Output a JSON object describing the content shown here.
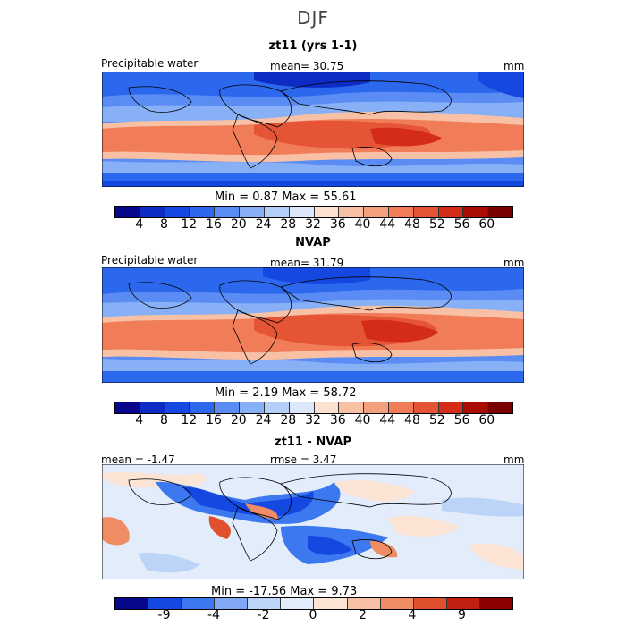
{
  "season": "DJF",
  "panels": [
    {
      "title": "zt11 (yrs 1-1)",
      "left_label": "Precipitable water",
      "center_label": "mean=  30.75",
      "right_label": "mm",
      "stats": "Min =    0.87  Max =   55.61",
      "ticks": [
        "4",
        "8",
        "12",
        "16",
        "20",
        "24",
        "28",
        "32",
        "36",
        "40",
        "44",
        "48",
        "52",
        "56",
        "60"
      ]
    },
    {
      "title": "NVAP",
      "left_label": "Precipitable water",
      "center_label": "mean=  31.79",
      "right_label": "mm",
      "stats": "Min =    2.19  Max =   58.72",
      "ticks": [
        "4",
        "8",
        "12",
        "16",
        "20",
        "24",
        "28",
        "32",
        "36",
        "40",
        "44",
        "48",
        "52",
        "56",
        "60"
      ]
    },
    {
      "title": "zt11 - NVAP",
      "left_label": "mean =  -1.47",
      "center_label": "rmse =    3.47",
      "right_label": "mm",
      "stats": "Min = -17.56  Max =    9.73",
      "ticks": [
        "-9",
        "-4",
        "-2",
        "0",
        "2",
        "4",
        "9"
      ]
    }
  ],
  "colors": {
    "field_scale": [
      "#08088c",
      "#0c2cc4",
      "#1448e0",
      "#2c68ee",
      "#5a8cf4",
      "#88b0f6",
      "#b4d0f8",
      "#dce8fa",
      "#fce0d0",
      "#f8c0a4",
      "#f4a07c",
      "#f07c58",
      "#e65436",
      "#d42c18",
      "#a80c04",
      "#780000"
    ],
    "diff_scale": [
      "#08088c",
      "#1448e0",
      "#3c78f0",
      "#80a8f4",
      "#bcd4f8",
      "#e2ecfa",
      "#fce4d4",
      "#f8c0a4",
      "#f08c64",
      "#e0502c",
      "#c02010",
      "#8c0000"
    ]
  }
}
